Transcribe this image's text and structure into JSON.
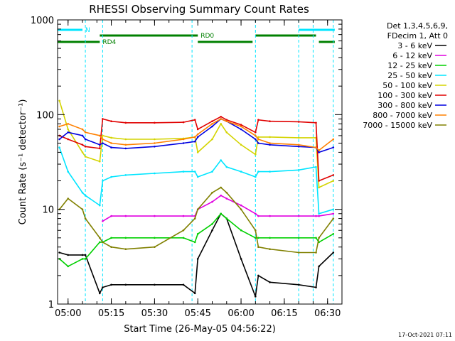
{
  "chart_data": {
    "type": "line",
    "title": "RHESSI Observing Summary Count Rates",
    "xlabel": "Start Time (26-May-05 04:56:22)",
    "ylabel": "Count Rate (s⁻¹ detector⁻¹)",
    "y_scale": "log",
    "xlim": [
      "04:56:22",
      "06:35:00"
    ],
    "ylim": [
      1,
      1000
    ],
    "x_ticks": [
      "05:00",
      "05:15",
      "05:30",
      "05:45",
      "06:00",
      "06:15",
      "06:30"
    ],
    "y_ticks": [
      "1",
      "10",
      "100",
      "1000"
    ],
    "legend_header": [
      "Det 1,3,4,5,6,9,",
      "FDecim 1, Att 0"
    ],
    "legend_position": "right",
    "footer_date": "17-Oct-2021 07:11",
    "flags": [
      {
        "label": "N",
        "color": "#00e5ff",
        "intervals": [
          [
            "04:56:22",
            "05:05:00"
          ],
          [
            "06:20:00",
            "06:32:30"
          ]
        ]
      },
      {
        "label": "RD0",
        "color": "#008000",
        "intervals": [
          [
            "05:11:00",
            "05:45:00"
          ],
          [
            "06:05:00",
            "06:26:00"
          ]
        ]
      },
      {
        "label": "RD4",
        "color": "#008000",
        "intervals": [
          [
            "04:56:22",
            "05:11:00"
          ],
          [
            "05:45:00",
            "06:04:00"
          ],
          [
            "06:27:00",
            "06:32:30"
          ]
        ]
      }
    ],
    "night_markers": [
      "05:06:00",
      "05:12:00",
      "05:43:00",
      "06:05:00",
      "06:20:00",
      "06:25:00",
      "06:32:00"
    ],
    "x": [
      "04:57",
      "05:00",
      "05:05",
      "05:06",
      "05:11",
      "05:12",
      "05:15",
      "05:20",
      "05:30",
      "05:40",
      "05:44",
      "05:45",
      "05:50",
      "05:53",
      "05:55",
      "06:00",
      "06:05",
      "06:06",
      "06:10",
      "06:20",
      "06:26",
      "06:27",
      "06:32"
    ],
    "series": [
      {
        "name": "3 - 6 keV",
        "color": "#000000",
        "values": [
          3.5,
          3.3,
          3.3,
          3.3,
          1.3,
          1.5,
          1.6,
          1.6,
          1.6,
          1.6,
          1.3,
          3.0,
          6.0,
          9.0,
          8.0,
          3.0,
          1.2,
          2.0,
          1.7,
          1.6,
          1.5,
          2.5,
          3.5
        ]
      },
      {
        "name": "6 - 12 keV",
        "color": "#e000e0",
        "values": [
          null,
          null,
          null,
          null,
          null,
          7.5,
          8.5,
          8.5,
          8.5,
          8.5,
          8.5,
          10,
          12,
          14,
          13,
          11,
          9,
          8.5,
          8.5,
          8.5,
          8.5,
          8.5,
          9
        ]
      },
      {
        "name": "12 - 25 keV",
        "color": "#00d000",
        "values": [
          3.0,
          2.5,
          3.0,
          3.0,
          4.5,
          4.5,
          5.0,
          5.0,
          5.0,
          5.0,
          4.5,
          5.5,
          7.0,
          9.0,
          8.0,
          6.0,
          5.0,
          5.0,
          5.0,
          5.0,
          5.0,
          4.5,
          5.5
        ]
      },
      {
        "name": "25 - 50 keV",
        "color": "#00e5ff",
        "values": [
          45,
          25,
          15,
          14,
          11,
          20,
          22,
          23,
          24,
          25,
          25,
          22,
          25,
          33,
          28,
          25,
          22,
          25,
          25,
          26,
          28,
          9,
          10
        ]
      },
      {
        "name": "50 - 100 keV",
        "color": "#d4d400",
        "values": [
          140,
          70,
          40,
          36,
          32,
          60,
          57,
          55,
          55,
          56,
          58,
          40,
          55,
          80,
          65,
          48,
          38,
          58,
          58,
          57,
          57,
          17,
          20
        ]
      },
      {
        "name": "100 - 300 keV",
        "color": "#e00000",
        "values": [
          60,
          55,
          48,
          46,
          44,
          90,
          85,
          82,
          82,
          83,
          88,
          70,
          85,
          95,
          88,
          78,
          65,
          88,
          85,
          84,
          82,
          20,
          23
        ]
      },
      {
        "name": "300 - 800 keV",
        "color": "#0000e0",
        "values": [
          55,
          65,
          60,
          55,
          48,
          50,
          45,
          44,
          46,
          50,
          52,
          58,
          75,
          90,
          85,
          70,
          55,
          50,
          48,
          46,
          45,
          40,
          45
        ]
      },
      {
        "name": "800 - 7000 keV",
        "color": "#ff8000",
        "values": [
          75,
          80,
          70,
          65,
          60,
          55,
          50,
          48,
          50,
          55,
          58,
          62,
          80,
          90,
          85,
          75,
          60,
          55,
          50,
          48,
          45,
          42,
          55
        ]
      },
      {
        "name": "7000 - 15000 keV",
        "color": "#808000",
        "values": [
          10,
          13,
          10,
          8,
          5,
          4.5,
          4.0,
          3.8,
          4.0,
          6.0,
          8.0,
          10,
          15,
          17,
          15,
          10,
          6.0,
          4.0,
          3.8,
          3.5,
          3.5,
          5.0,
          8.0
        ]
      }
    ]
  }
}
